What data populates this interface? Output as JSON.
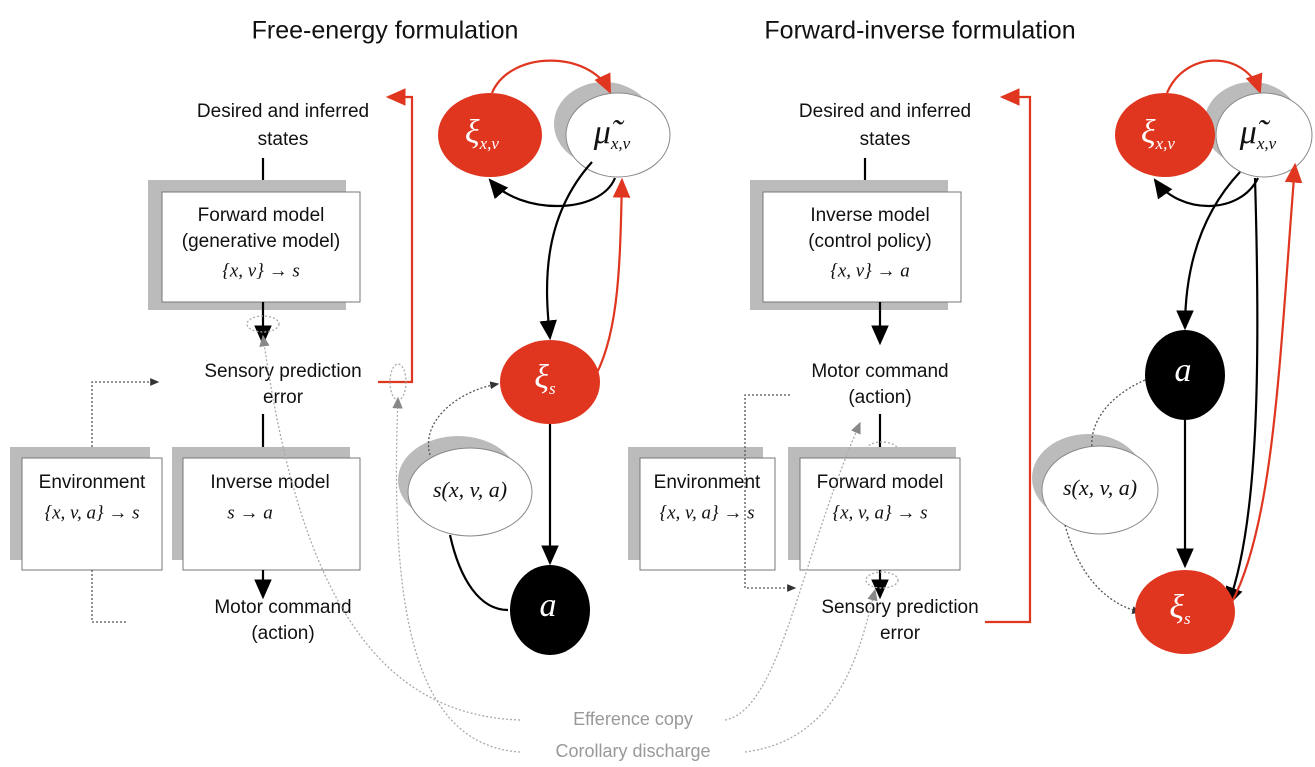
{
  "left": {
    "title": "Free-energy formulation",
    "states": [
      "Desired and inferred",
      "states"
    ],
    "forward_model": {
      "lines": [
        "Forward model",
        "(generative model)"
      ],
      "mapping": "{x, v} → s"
    },
    "error": [
      "Sensory prediction",
      "error"
    ],
    "environment": {
      "label": "Environment",
      "mapping": "{x, v, a} → s"
    },
    "inverse_model": {
      "label": "Inverse model",
      "mapping": "s → a"
    },
    "motor": [
      "Motor command",
      "(action)"
    ],
    "nodes": {
      "xi_xv": {
        "symbol": "ξ",
        "subscript": "x,v"
      },
      "mu_xv": {
        "symbol": "μ̃",
        "subscript": "x,v"
      },
      "xi_s": {
        "symbol": "ξ",
        "subscript": "s"
      },
      "s": "s(x, v, a)",
      "a": "a"
    }
  },
  "right": {
    "title": "Forward-inverse formulation",
    "states": [
      "Desired and inferred",
      "states"
    ],
    "inverse_model": {
      "lines": [
        "Inverse model",
        "(control policy)"
      ],
      "mapping": "{x, v} → a"
    },
    "motor": [
      "Motor command",
      "(action)"
    ],
    "environment": {
      "label": "Environment",
      "mapping": "{x, v, a} → s"
    },
    "forward_model": {
      "label": "Forward model",
      "mapping": "{x, v, a} → s"
    },
    "error": [
      "Sensory prediction",
      "error"
    ],
    "nodes": {
      "xi_xv": {
        "symbol": "ξ",
        "subscript": "x,v"
      },
      "mu_xv": {
        "symbol": "μ̃",
        "subscript": "x,v"
      },
      "a": "a",
      "s": "s(x, v, a)",
      "xi_s": {
        "symbol": "ξ",
        "subscript": "s"
      }
    }
  },
  "legend": {
    "efference": "Efference copy",
    "corollary": "Corollary discharge"
  }
}
